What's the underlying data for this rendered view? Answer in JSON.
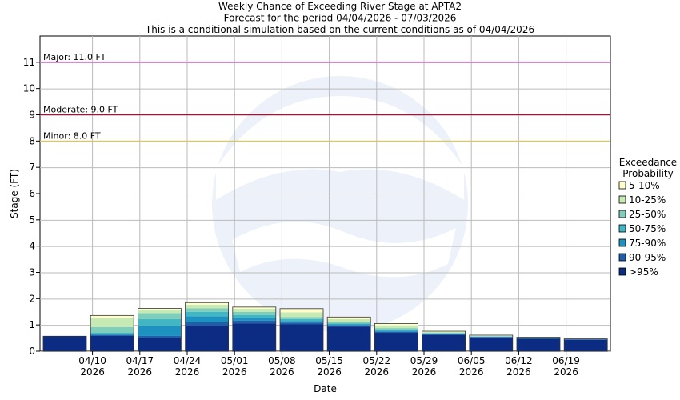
{
  "chart_data": {
    "type": "bar",
    "title_lines": [
      "Weekly Chance of Exceeding River Stage at APTA2",
      "Forecast for the period 04/04/2026 - 07/03/2026",
      "This is a conditional simulation based on the current conditions as of 04/04/2026"
    ],
    "xlabel": "Date",
    "ylabel": "Stage (FT)",
    "ylim": [
      0,
      12
    ],
    "y_ticks": [
      0,
      1,
      2,
      3,
      4,
      5,
      6,
      7,
      8,
      9,
      10,
      11
    ],
    "x_ticks": [
      {
        "date": "04/10",
        "year": "2026"
      },
      {
        "date": "04/17",
        "year": "2026"
      },
      {
        "date": "04/24",
        "year": "2026"
      },
      {
        "date": "05/01",
        "year": "2026"
      },
      {
        "date": "05/08",
        "year": "2026"
      },
      {
        "date": "05/15",
        "year": "2026"
      },
      {
        "date": "05/22",
        "year": "2026"
      },
      {
        "date": "05/29",
        "year": "2026"
      },
      {
        "date": "06/05",
        "year": "2026"
      },
      {
        "date": "06/12",
        "year": "2026"
      },
      {
        "date": "06/19",
        "year": "2026"
      }
    ],
    "flood_levels": [
      {
        "label": "Major: 11.0 FT",
        "value": 11.0,
        "color": "#cc33cc"
      },
      {
        "label": "Moderate: 9.0 FT",
        "value": 9.0,
        "color": "#cc0033"
      },
      {
        "label": "Minor: 8.0 FT",
        "value": 8.0,
        "color": "#e8cc33"
      }
    ],
    "legend_title": [
      "Exceedance",
      "Probability"
    ],
    "legend_position": "right",
    "series": [
      {
        "name": "5-10%",
        "color": "#ffffcc"
      },
      {
        "name": "10-25%",
        "color": "#c7e9b4"
      },
      {
        "name": "25-50%",
        "color": "#7fcdbb"
      },
      {
        "name": "50-75%",
        "color": "#41b6c4"
      },
      {
        "name": "75-90%",
        "color": "#1d91c0"
      },
      {
        "name": "90-95%",
        "color": "#225ea8"
      },
      {
        "name": ">95%",
        "color": "#0c2c84"
      }
    ],
    "weeks": [
      {
        "week_start": "04/04",
        "levels": [
          0.57,
          0.57,
          0.57,
          0.57,
          0.57,
          0.57,
          0.57,
          0.57
        ]
      },
      {
        "week_start": "04/11",
        "levels": [
          0.58,
          0.62,
          0.66,
          0.7,
          0.92,
          1.25,
          1.36,
          1.36
        ]
      },
      {
        "week_start": "04/18",
        "levels": [
          0.5,
          0.58,
          0.95,
          1.22,
          1.45,
          1.58,
          1.63,
          1.63
        ]
      },
      {
        "week_start": "04/25",
        "levels": [
          0.97,
          1.1,
          1.33,
          1.5,
          1.63,
          1.77,
          1.85,
          1.85
        ]
      },
      {
        "week_start": "05/02",
        "levels": [
          1.05,
          1.16,
          1.27,
          1.38,
          1.5,
          1.62,
          1.68,
          1.68
        ]
      },
      {
        "week_start": "05/09",
        "levels": [
          1.02,
          1.09,
          1.15,
          1.22,
          1.3,
          1.48,
          1.62,
          1.62
        ]
      },
      {
        "week_start": "05/16",
        "levels": [
          0.93,
          0.98,
          1.02,
          1.06,
          1.1,
          1.22,
          1.3,
          1.3
        ]
      },
      {
        "week_start": "05/23",
        "levels": [
          0.7,
          0.74,
          0.78,
          0.82,
          0.88,
          0.98,
          1.05,
          1.05
        ]
      },
      {
        "week_start": "05/30",
        "levels": [
          0.62,
          0.64,
          0.66,
          0.68,
          0.7,
          0.73,
          0.76,
          0.76
        ]
      },
      {
        "week_start": "06/06",
        "levels": [
          0.53,
          0.54,
          0.55,
          0.56,
          0.57,
          0.59,
          0.61,
          0.61
        ]
      },
      {
        "week_start": "06/13",
        "levels": [
          0.48,
          0.49,
          0.5,
          0.51,
          0.51,
          0.52,
          0.53,
          0.53
        ]
      },
      {
        "week_start": "06/20",
        "levels": [
          0.44,
          0.45,
          0.45,
          0.46,
          0.46,
          0.47,
          0.47,
          0.47
        ]
      }
    ],
    "grid": true
  }
}
